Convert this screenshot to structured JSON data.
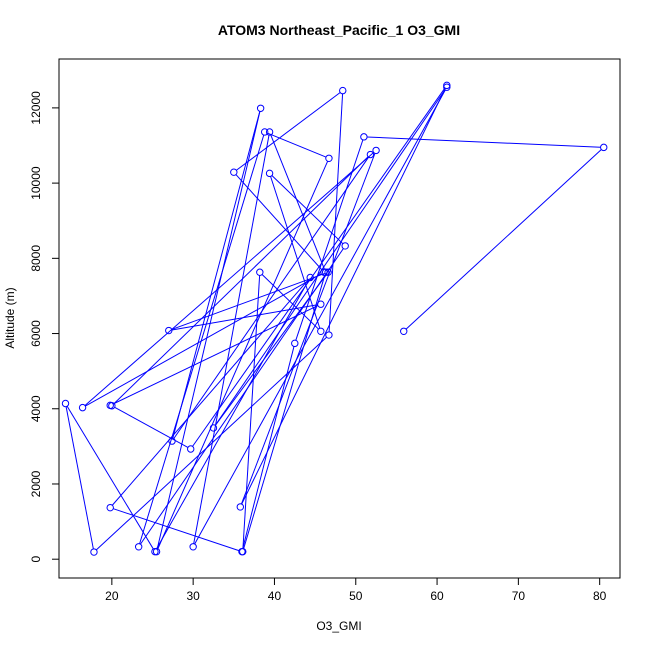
{
  "chart_data": {
    "type": "line",
    "title": "ATOM3 Northeast_Pacific_1 O3_GMI",
    "xlabel": "O3_GMI",
    "ylabel": "Altitude (m)",
    "xlim": [
      13.5,
      82.5
    ],
    "ylim": [
      -500,
      13300
    ],
    "xticks": [
      20,
      30,
      40,
      50,
      60,
      70,
      80
    ],
    "yticks": [
      0,
      2000,
      4000,
      6000,
      8000,
      10000,
      12000
    ],
    "grid": false,
    "color": "#0000ff",
    "series": [
      {
        "x": [
          55.9,
          80.5,
          51.0,
          42.5,
          36.0,
          19.8,
          44.4,
          25.3,
          14.3,
          17.8,
          46.7,
          48.4,
          35.0,
          46.1,
          16.4,
          52.5,
          35.8,
          61.2,
          29.7,
          20.0,
          51.8,
          27.4,
          38.3,
          25.5,
          46.7,
          38.8,
          23.3,
          48.7,
          39.4,
          45.7,
          38.2,
          36.1,
          46.3,
          39.4,
          30.0,
          61.2,
          32.5,
          46.6,
          27.0,
          45.7,
          19.8
        ],
        "y": [
          6060,
          10950,
          11230,
          5740,
          200,
          1370,
          7490,
          200,
          4140,
          190,
          5960,
          12460,
          10290,
          7630,
          4030,
          10870,
          1390,
          12600,
          2930,
          4080,
          10760,
          3140,
          11990,
          200,
          10660,
          11360,
          330,
          8330,
          10260,
          6060,
          7630,
          200,
          7630,
          11360,
          330,
          12550,
          3490,
          7630,
          6080,
          6780,
          4090
        ]
      }
    ]
  }
}
